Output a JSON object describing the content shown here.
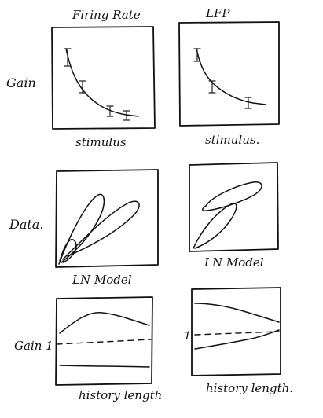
{
  "columns": {
    "left_title": "Firing Rate",
    "right_title": "LFP"
  },
  "row_labels": {
    "gain": "Gain",
    "data": "Data.",
    "gain_1": "Gain 1"
  },
  "x_labels": {
    "stimulus_left": "stimulus",
    "stimulus_right": "stimulus.",
    "ln_model_left": "LN Model",
    "ln_model_right": "LN Model",
    "history_left": "history length",
    "history_right": "history length."
  },
  "marks": {
    "one": "1"
  }
}
